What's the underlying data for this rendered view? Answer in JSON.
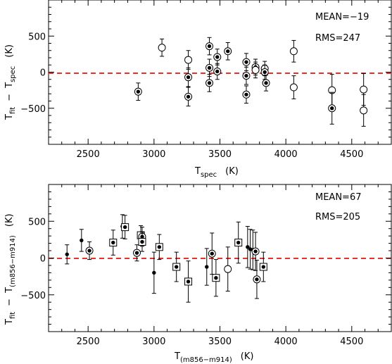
{
  "chart_data": [
    {
      "type": "scatter",
      "xlabel": {
        "main": "T",
        "sub": "spec",
        "unit": "(K)"
      },
      "ylabel": {
        "left_main": "T",
        "left_sub": "fit",
        "minus": "−",
        "right_main": "T",
        "right_sub": "spec",
        "unit": "(K)"
      },
      "xlim": [
        2200,
        4800
      ],
      "ylim": [
        -1000,
        1000
      ],
      "xticks": [
        2500,
        3000,
        3500,
        4000,
        4500
      ],
      "xtick_labels": [
        "2500",
        "3000",
        "3500",
        "4000",
        "4500"
      ],
      "yticks": [
        -500,
        0,
        500
      ],
      "ytick_labels": [
        "−500",
        "0",
        "500"
      ],
      "zero_line": {
        "y": 0,
        "color": "#e8302c",
        "style": "dashed"
      },
      "annotations": [
        "MEAN=−19",
        "RMS=247"
      ],
      "points": [
        {
          "x": 2880,
          "y": -270,
          "err": 120,
          "marker": "dot-circle"
        },
        {
          "x": 3060,
          "y": 340,
          "err": 120,
          "marker": "circle"
        },
        {
          "x": 3260,
          "y": 170,
          "err": 130,
          "marker": "circle"
        },
        {
          "x": 3260,
          "y": -70,
          "err": 130,
          "marker": "dot-circle"
        },
        {
          "x": 3260,
          "y": -340,
          "err": 130,
          "marker": "dot-circle"
        },
        {
          "x": 3420,
          "y": 360,
          "err": 120,
          "marker": "dot-circle"
        },
        {
          "x": 3420,
          "y": 60,
          "err": 120,
          "marker": "dot-circle"
        },
        {
          "x": 3420,
          "y": -150,
          "err": 120,
          "marker": "dot-circle"
        },
        {
          "x": 3480,
          "y": 210,
          "err": 110,
          "marker": "dot-circle"
        },
        {
          "x": 3480,
          "y": 10,
          "err": 110,
          "marker": "dot-circle"
        },
        {
          "x": 3560,
          "y": 290,
          "err": 120,
          "marker": "dot-circle"
        },
        {
          "x": 3700,
          "y": 140,
          "err": 120,
          "marker": "dot-circle"
        },
        {
          "x": 3700,
          "y": -50,
          "err": 120,
          "marker": "dot-circle"
        },
        {
          "x": 3700,
          "y": -310,
          "err": 120,
          "marker": "dot-circle"
        },
        {
          "x": 3770,
          "y": 70,
          "err": 110,
          "marker": "dot-circle"
        },
        {
          "x": 3770,
          "y": 30,
          "err": 110,
          "marker": "circle"
        },
        {
          "x": 3840,
          "y": 50,
          "err": 100,
          "marker": "circle"
        },
        {
          "x": 3840,
          "y": 0,
          "err": 100,
          "marker": "dot-circle"
        },
        {
          "x": 3850,
          "y": -150,
          "err": 110,
          "marker": "dot-circle"
        },
        {
          "x": 4060,
          "y": 290,
          "err": 150,
          "marker": "circle"
        },
        {
          "x": 4060,
          "y": -210,
          "err": 160,
          "marker": "circle"
        },
        {
          "x": 4350,
          "y": -250,
          "err": 220,
          "marker": "circle"
        },
        {
          "x": 4350,
          "y": -500,
          "err": 220,
          "marker": "dot-circle"
        },
        {
          "x": 4590,
          "y": -240,
          "err": 220,
          "marker": "circle"
        },
        {
          "x": 4590,
          "y": -530,
          "err": 220,
          "marker": "circle"
        }
      ]
    },
    {
      "type": "scatter",
      "xlabel": {
        "main": "T",
        "sub": "(m856−m914)",
        "unit": "(K)"
      },
      "ylabel": {
        "left_main": "T",
        "left_sub": "fit",
        "minus": "−",
        "right_main": "T",
        "right_sub": "(m856−m914)",
        "unit": "(K)"
      },
      "xlim": [
        2200,
        4800
      ],
      "ylim": [
        -1000,
        1000
      ],
      "xticks": [
        2500,
        3000,
        3500,
        4000,
        4500
      ],
      "xtick_labels": [
        "2500",
        "3000",
        "3500",
        "4000",
        "4500"
      ],
      "yticks": [
        -500,
        0,
        500
      ],
      "ytick_labels": [
        "−500",
        "0",
        "500"
      ],
      "zero_line": {
        "y": 0,
        "color": "#e8302c",
        "style": "dashed"
      },
      "annotations": [
        "MEAN=67",
        "RMS=205"
      ],
      "points": [
        {
          "x": 2340,
          "y": 50,
          "err": 130,
          "marker": "dot"
        },
        {
          "x": 2450,
          "y": 240,
          "err": 150,
          "marker": "dot"
        },
        {
          "x": 2510,
          "y": 100,
          "err": 120,
          "marker": "dot-circle"
        },
        {
          "x": 2690,
          "y": 210,
          "err": 170,
          "marker": "dot-square"
        },
        {
          "x": 2760,
          "y": 430,
          "err": 160,
          "marker": "dot"
        },
        {
          "x": 2780,
          "y": 420,
          "err": 160,
          "marker": "dot-square"
        },
        {
          "x": 2870,
          "y": 70,
          "err": 110,
          "marker": "dot-circle"
        },
        {
          "x": 2900,
          "y": 310,
          "err": 130,
          "marker": "dot-square"
        },
        {
          "x": 2910,
          "y": 290,
          "err": 130,
          "marker": "dot-circle"
        },
        {
          "x": 2910,
          "y": 220,
          "err": 130,
          "marker": "dot-square"
        },
        {
          "x": 3000,
          "y": -200,
          "err": 280,
          "marker": "dot"
        },
        {
          "x": 3040,
          "y": 150,
          "err": 170,
          "marker": "dot-square"
        },
        {
          "x": 3170,
          "y": -120,
          "err": 200,
          "marker": "dot-square"
        },
        {
          "x": 3260,
          "y": -320,
          "err": 280,
          "marker": "dot-square"
        },
        {
          "x": 3400,
          "y": -120,
          "err": 250,
          "marker": "dot"
        },
        {
          "x": 3440,
          "y": 60,
          "err": 280,
          "marker": "dot-circle"
        },
        {
          "x": 3470,
          "y": -270,
          "err": 250,
          "marker": "dot-square"
        },
        {
          "x": 3560,
          "y": -150,
          "err": 300,
          "marker": "circle"
        },
        {
          "x": 3640,
          "y": 210,
          "err": 280,
          "marker": "dot-square"
        },
        {
          "x": 3710,
          "y": 150,
          "err": 280,
          "marker": "dot"
        },
        {
          "x": 3730,
          "y": 120,
          "err": 270,
          "marker": "dot"
        },
        {
          "x": 3750,
          "y": 110,
          "err": 270,
          "marker": "dot"
        },
        {
          "x": 3770,
          "y": 90,
          "err": 260,
          "marker": "dot-circle"
        },
        {
          "x": 3780,
          "y": -290,
          "err": 260,
          "marker": "dot-circle"
        },
        {
          "x": 3830,
          "y": -120,
          "err": 200,
          "marker": "dot-square"
        }
      ]
    }
  ]
}
